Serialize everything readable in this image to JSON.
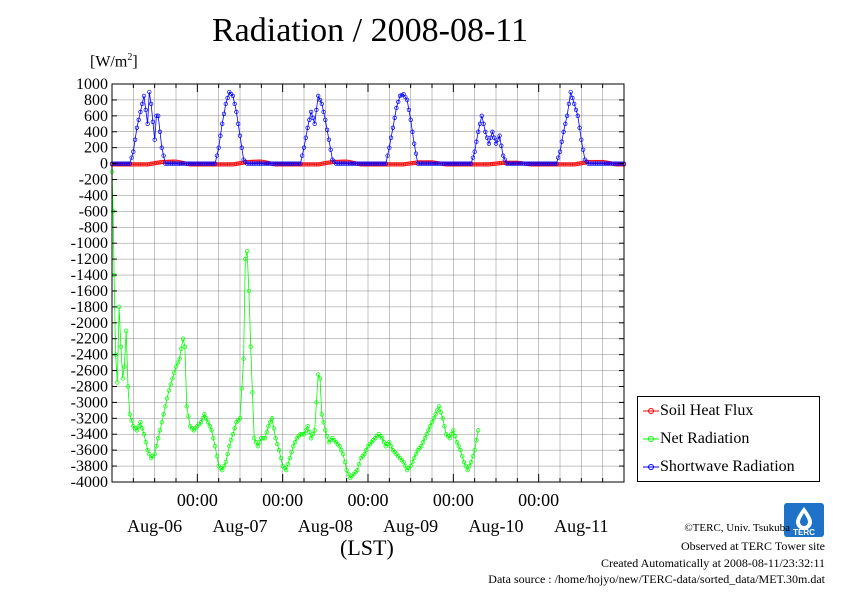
{
  "chart_data": {
    "type": "line",
    "title": "Radiation / 2008-08-11",
    "unit_label": "[W/m",
    "unit_sup": "2",
    "unit_close": "]",
    "xlabel": "(LST)",
    "x_range_hours": [
      0,
      144
    ],
    "ylim": [
      -4000,
      1000
    ],
    "yticks": [
      1000,
      800,
      600,
      400,
      200,
      0,
      -200,
      -400,
      -600,
      -800,
      -1000,
      -1200,
      -1400,
      -1600,
      -1800,
      -2000,
      -2200,
      -2400,
      -2600,
      -2800,
      -3000,
      -3200,
      -3400,
      -3600,
      -3800,
      -4000
    ],
    "time_ticks": [
      {
        "hour": 24,
        "time": "00:00",
        "day": "Aug-06"
      },
      {
        "hour": 48,
        "time": "00:00",
        "day": "Aug-07"
      },
      {
        "hour": 72,
        "time": "00:00",
        "day": "Aug-08"
      },
      {
        "hour": 96,
        "time": "00:00",
        "day": "Aug-09"
      },
      {
        "hour": 120,
        "time": "00:00",
        "day": "Aug-10"
      }
    ],
    "day_labels": [
      {
        "hour": 12,
        "label": "Aug-06"
      },
      {
        "hour": 36,
        "label": "Aug-07"
      },
      {
        "hour": 60,
        "label": "Aug-08"
      },
      {
        "hour": 84,
        "label": "Aug-09"
      },
      {
        "hour": 108,
        "label": "Aug-10"
      },
      {
        "hour": 132,
        "label": "Aug-11"
      }
    ],
    "time_labels": [
      {
        "hour": 24,
        "label": "00:00"
      },
      {
        "hour": 48,
        "label": "00:00"
      },
      {
        "hour": 72,
        "label": "00:00"
      },
      {
        "hour": 96,
        "label": "00:00"
      },
      {
        "hour": 120,
        "label": "00:00"
      }
    ],
    "grid": true,
    "legend_position": "bottom-right",
    "series": [
      {
        "name": "Soil Heat Flux",
        "color": "#ff0000",
        "points": [
          [
            0,
            -10
          ],
          [
            10,
            -10
          ],
          [
            14,
            20
          ],
          [
            18,
            25
          ],
          [
            22,
            -10
          ],
          [
            34,
            -10
          ],
          [
            38,
            20
          ],
          [
            42,
            25
          ],
          [
            46,
            -10
          ],
          [
            58,
            -10
          ],
          [
            62,
            20
          ],
          [
            66,
            25
          ],
          [
            70,
            -10
          ],
          [
            82,
            -10
          ],
          [
            86,
            15
          ],
          [
            90,
            15
          ],
          [
            94,
            -10
          ],
          [
            106,
            -10
          ],
          [
            110,
            10
          ],
          [
            114,
            10
          ],
          [
            118,
            -10
          ],
          [
            130,
            -10
          ],
          [
            134,
            20
          ],
          [
            138,
            20
          ],
          [
            142,
            -10
          ],
          [
            144,
            -10
          ]
        ]
      },
      {
        "name": "Net Radiation",
        "color": "#00ff00",
        "points": [
          [
            0,
            -100
          ],
          [
            0.3,
            -600
          ],
          [
            0.6,
            -1400
          ],
          [
            1,
            -2400
          ],
          [
            1.5,
            -2750
          ],
          [
            2,
            -1800
          ],
          [
            2.5,
            -2300
          ],
          [
            3,
            -2700
          ],
          [
            3.5,
            -2550
          ],
          [
            4,
            -2100
          ],
          [
            4.5,
            -2800
          ],
          [
            5,
            -3150
          ],
          [
            6,
            -3300
          ],
          [
            7,
            -3350
          ],
          [
            8,
            -3250
          ],
          [
            9,
            -3400
          ],
          [
            10,
            -3600
          ],
          [
            11,
            -3700
          ],
          [
            12,
            -3650
          ],
          [
            13,
            -3450
          ],
          [
            14,
            -3250
          ],
          [
            15,
            -3050
          ],
          [
            16,
            -2850
          ],
          [
            17,
            -2700
          ],
          [
            18,
            -2550
          ],
          [
            19,
            -2450
          ],
          [
            20,
            -2200
          ],
          [
            20.5,
            -2300
          ],
          [
            21,
            -3050
          ],
          [
            22,
            -3300
          ],
          [
            23,
            -3350
          ],
          [
            24,
            -3300
          ],
          [
            25,
            -3250
          ],
          [
            26,
            -3150
          ],
          [
            27,
            -3250
          ],
          [
            28,
            -3350
          ],
          [
            29,
            -3550
          ],
          [
            30,
            -3800
          ],
          [
            31,
            -3850
          ],
          [
            32,
            -3750
          ],
          [
            33,
            -3550
          ],
          [
            34,
            -3400
          ],
          [
            35,
            -3250
          ],
          [
            36,
            -3200
          ],
          [
            37,
            -2450
          ],
          [
            37.5,
            -1200
          ],
          [
            38,
            -1100
          ],
          [
            38.5,
            -1600
          ],
          [
            39,
            -2300
          ],
          [
            40,
            -3450
          ],
          [
            41,
            -3550
          ],
          [
            42,
            -3450
          ],
          [
            43,
            -3450
          ],
          [
            44,
            -3300
          ],
          [
            45,
            -3200
          ],
          [
            46,
            -3450
          ],
          [
            47,
            -3600
          ],
          [
            48,
            -3800
          ],
          [
            49,
            -3850
          ],
          [
            50,
            -3700
          ],
          [
            51,
            -3550
          ],
          [
            52,
            -3450
          ],
          [
            53,
            -3400
          ],
          [
            54,
            -3400
          ],
          [
            55,
            -3300
          ],
          [
            56,
            -3450
          ],
          [
            57,
            -3350
          ],
          [
            58,
            -2650
          ],
          [
            58.5,
            -2700
          ],
          [
            59,
            -3150
          ],
          [
            60,
            -3350
          ],
          [
            61,
            -3500
          ],
          [
            62,
            -3450
          ],
          [
            63,
            -3500
          ],
          [
            64,
            -3550
          ],
          [
            65,
            -3650
          ],
          [
            66,
            -3850
          ],
          [
            67,
            -3950
          ],
          [
            68,
            -3900
          ],
          [
            69,
            -3850
          ],
          [
            70,
            -3700
          ],
          [
            71,
            -3650
          ],
          [
            72,
            -3550
          ],
          [
            73,
            -3500
          ],
          [
            74,
            -3450
          ],
          [
            75,
            -3400
          ],
          [
            76,
            -3450
          ],
          [
            77,
            -3550
          ],
          [
            78,
            -3500
          ],
          [
            79,
            -3600
          ],
          [
            80,
            -3650
          ],
          [
            81,
            -3700
          ],
          [
            82,
            -3750
          ],
          [
            83,
            -3850
          ],
          [
            84,
            -3800
          ],
          [
            85,
            -3700
          ],
          [
            86,
            -3600
          ],
          [
            87,
            -3550
          ],
          [
            88,
            -3450
          ],
          [
            89,
            -3350
          ],
          [
            90,
            -3250
          ],
          [
            91,
            -3150
          ],
          [
            92,
            -3050
          ],
          [
            93,
            -3200
          ],
          [
            94,
            -3400
          ],
          [
            95,
            -3450
          ],
          [
            96,
            -3350
          ],
          [
            97,
            -3500
          ],
          [
            98,
            -3600
          ],
          [
            99,
            -3750
          ],
          [
            100,
            -3850
          ],
          [
            101,
            -3750
          ],
          [
            102,
            -3600
          ],
          [
            103,
            -3350
          ]
        ]
      },
      {
        "name": "Shortwave Radiation",
        "color": "#0000ff",
        "points": [
          [
            0,
            0
          ],
          [
            5,
            0
          ],
          [
            6,
            150
          ],
          [
            7,
            450
          ],
          [
            8,
            650
          ],
          [
            9,
            850
          ],
          [
            10,
            500
          ],
          [
            10.5,
            900
          ],
          [
            11,
            750
          ],
          [
            12,
            300
          ],
          [
            12.5,
            600
          ],
          [
            13,
            600
          ],
          [
            14,
            200
          ],
          [
            15,
            0
          ],
          [
            29,
            0
          ],
          [
            30,
            200
          ],
          [
            31,
            500
          ],
          [
            32,
            750
          ],
          [
            33,
            900
          ],
          [
            34,
            850
          ],
          [
            35,
            650
          ],
          [
            36,
            350
          ],
          [
            37,
            50
          ],
          [
            38,
            0
          ],
          [
            53,
            0
          ],
          [
            54,
            200
          ],
          [
            55,
            450
          ],
          [
            56,
            650
          ],
          [
            57,
            500
          ],
          [
            58,
            850
          ],
          [
            59,
            750
          ],
          [
            60,
            550
          ],
          [
            61,
            300
          ],
          [
            62,
            50
          ],
          [
            63,
            0
          ],
          [
            77,
            0
          ],
          [
            78,
            200
          ],
          [
            79,
            450
          ],
          [
            80,
            700
          ],
          [
            81,
            850
          ],
          [
            82,
            870
          ],
          [
            83,
            800
          ],
          [
            84,
            550
          ],
          [
            85,
            250
          ],
          [
            86,
            0
          ],
          [
            101,
            0
          ],
          [
            102,
            150
          ],
          [
            103,
            400
          ],
          [
            104,
            600
          ],
          [
            105,
            400
          ],
          [
            106,
            250
          ],
          [
            107,
            400
          ],
          [
            108,
            250
          ],
          [
            109,
            350
          ],
          [
            110,
            100
          ],
          [
            111,
            0
          ],
          [
            125,
            0
          ],
          [
            126,
            150
          ],
          [
            127,
            400
          ],
          [
            128,
            600
          ],
          [
            129,
            900
          ],
          [
            130,
            750
          ],
          [
            131,
            600
          ],
          [
            132,
            300
          ],
          [
            133,
            50
          ],
          [
            134,
            0
          ],
          [
            144,
            0
          ]
        ]
      }
    ]
  },
  "credits": {
    "copyright": "©TERC, Univ. Tsukuba",
    "observed": "Observed at TERC Tower site",
    "created": "Created Automatically at 2008-08-11/23:32:11",
    "source": "Data source : /home/hojyo/new/TERC-data/sorted_data/MET.30m.dat"
  },
  "logo": {
    "text": "TERC",
    "color": "#1e73c8"
  }
}
